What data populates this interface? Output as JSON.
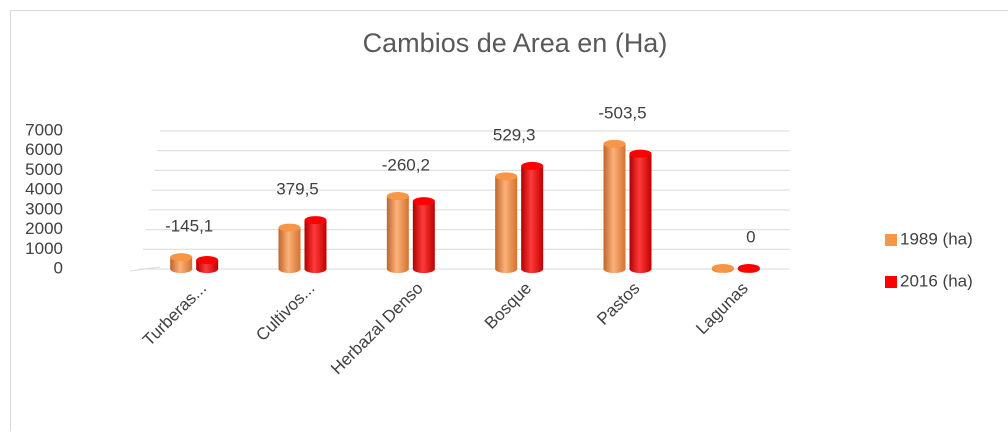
{
  "chart_data": {
    "type": "bar3d",
    "title": "Cambios de Area en (Ha)",
    "categories": [
      "Turberas...",
      "Cultivos...",
      "Herbazal Denso",
      "Bosque",
      "Pastos",
      "Lagunas"
    ],
    "series": [
      {
        "name": "1989 (ha)",
        "color": "#f79646",
        "values": [
          600,
          2100,
          3700,
          4700,
          6350,
          50
        ]
      },
      {
        "name": "2016 (ha)",
        "color": "#ff0000",
        "values": [
          455,
          2480,
          3440,
          5230,
          5850,
          50
        ]
      }
    ],
    "annotations": [
      "-145,1",
      "379,5",
      "-260,2",
      "529,3",
      "-503,5",
      "0"
    ],
    "ylim": [
      0,
      7000
    ],
    "yticks": [
      0,
      1000,
      2000,
      3000,
      4000,
      5000,
      6000,
      7000
    ],
    "grid": true,
    "legend": "right"
  }
}
